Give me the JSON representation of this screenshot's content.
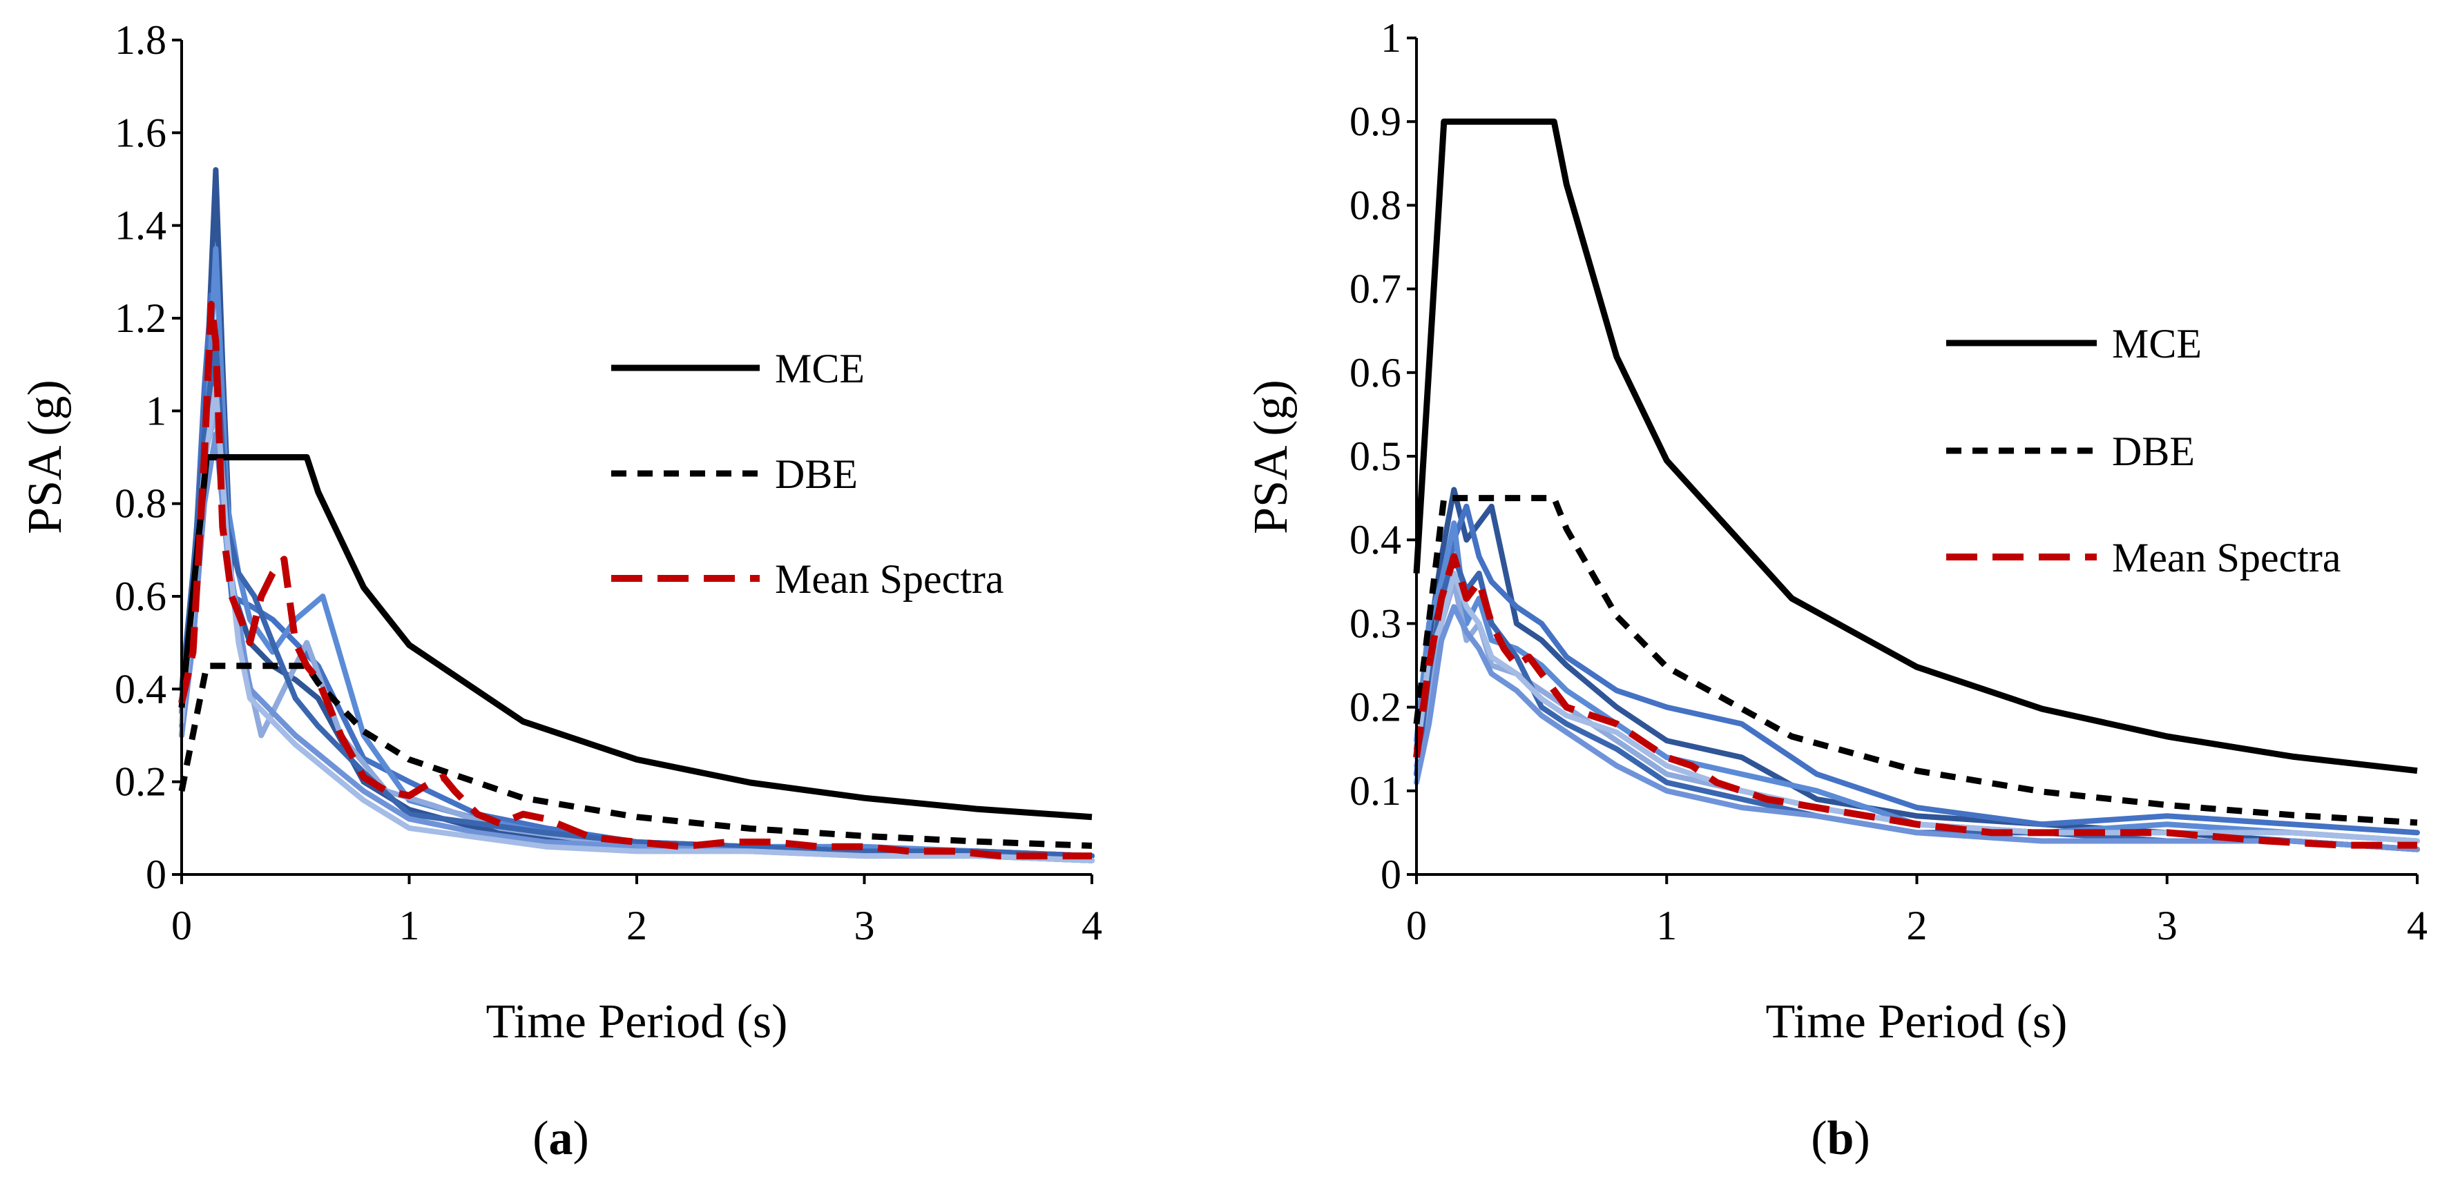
{
  "colors": {
    "mce": "#000000",
    "dbe": "#000000",
    "mean": "#C00000",
    "records": [
      "#2F5597",
      "#4472C4",
      "#5B8BD6",
      "#8FAADC",
      "#3A66B0",
      "#6F93D8",
      "#A4BCE6"
    ]
  },
  "chart_data": [
    {
      "type": "line",
      "panel_label": "(a)",
      "panel_letter": "a",
      "xlabel": "Time Period (s)",
      "ylabel": "PSA (g)",
      "xlim": [
        0,
        4
      ],
      "ylim": [
        0,
        1.8
      ],
      "xticks": [
        0,
        1,
        2,
        3,
        4
      ],
      "yticks": [
        0,
        0.2,
        0.4,
        0.6,
        0.8,
        1,
        1.2,
        1.4,
        1.6,
        1.8
      ],
      "ytick_labels": [
        "0",
        "0.2",
        "0.4",
        "0.6",
        "0.8",
        "1",
        "1.2",
        "1.4",
        "1.6",
        "1.8"
      ],
      "legend_position": "center-right",
      "design_spectra": {
        "mce_plateau": 0.9,
        "dbe_plateau": 0.45,
        "T0": 0.11,
        "Ts": 0.55,
        "PGA_mce": 0.36,
        "PGA_dbe": 0.18
      },
      "series": [
        {
          "name": "MCE",
          "style": "solid",
          "x": [
            0,
            0.11,
            0.55,
            0.6,
            0.8,
            1.0,
            1.5,
            2.0,
            2.5,
            3.0,
            3.5,
            4.0
          ],
          "y": [
            0.36,
            0.9,
            0.9,
            0.825,
            0.619,
            0.495,
            0.33,
            0.248,
            0.198,
            0.165,
            0.141,
            0.124
          ]
        },
        {
          "name": "DBE",
          "style": "dashed",
          "x": [
            0,
            0.11,
            0.55,
            0.6,
            0.8,
            1.0,
            1.5,
            2.0,
            2.5,
            3.0,
            3.5,
            4.0
          ],
          "y": [
            0.18,
            0.45,
            0.45,
            0.413,
            0.309,
            0.248,
            0.165,
            0.124,
            0.099,
            0.083,
            0.071,
            0.062
          ]
        },
        {
          "name": "Mean Spectra",
          "style": "longdash",
          "x": [
            0,
            0.05,
            0.1,
            0.13,
            0.15,
            0.18,
            0.22,
            0.26,
            0.3,
            0.35,
            0.4,
            0.45,
            0.5,
            0.55,
            0.6,
            0.7,
            0.8,
            0.9,
            1.0,
            1.1,
            1.15,
            1.2,
            1.3,
            1.4,
            1.5,
            1.6,
            1.8,
            2.0,
            2.2,
            2.4,
            2.6,
            2.8,
            3.0,
            3.2,
            3.4,
            3.6,
            3.8,
            4.0
          ],
          "y": [
            0.37,
            0.48,
            0.9,
            1.23,
            1.15,
            0.75,
            0.6,
            0.55,
            0.5,
            0.6,
            0.65,
            0.68,
            0.5,
            0.45,
            0.42,
            0.3,
            0.21,
            0.18,
            0.17,
            0.2,
            0.21,
            0.18,
            0.13,
            0.11,
            0.13,
            0.12,
            0.08,
            0.07,
            0.06,
            0.07,
            0.07,
            0.06,
            0.06,
            0.05,
            0.05,
            0.04,
            0.04,
            0.04
          ]
        }
      ],
      "records": [
        {
          "x": [
            0,
            0.05,
            0.1,
            0.15,
            0.18,
            0.22,
            0.3,
            0.4,
            0.5,
            0.6,
            0.8,
            1.0,
            1.3,
            1.6,
            2.0,
            2.5,
            3.0,
            3.5,
            4.0
          ],
          "y": [
            0.3,
            0.55,
            0.95,
            1.52,
            1.1,
            0.62,
            0.5,
            0.45,
            0.42,
            0.38,
            0.2,
            0.14,
            0.1,
            0.08,
            0.06,
            0.05,
            0.05,
            0.04,
            0.03
          ]
        },
        {
          "x": [
            0,
            0.05,
            0.1,
            0.13,
            0.17,
            0.22,
            0.3,
            0.4,
            0.5,
            0.6,
            0.8,
            1.0,
            1.3,
            1.6,
            2.0,
            2.5,
            3.0,
            3.5,
            4.0
          ],
          "y": [
            0.35,
            0.6,
            1.05,
            1.25,
            0.85,
            0.6,
            0.58,
            0.55,
            0.5,
            0.45,
            0.25,
            0.2,
            0.13,
            0.1,
            0.07,
            0.06,
            0.05,
            0.05,
            0.04
          ]
        },
        {
          "x": [
            0,
            0.05,
            0.1,
            0.15,
            0.2,
            0.25,
            0.3,
            0.4,
            0.5,
            0.62,
            0.8,
            1.0,
            1.3,
            1.6,
            2.0,
            2.5,
            3.0,
            3.5,
            4.0
          ],
          "y": [
            0.32,
            0.5,
            0.85,
            1.35,
            0.8,
            0.65,
            0.55,
            0.48,
            0.55,
            0.6,
            0.3,
            0.16,
            0.12,
            0.09,
            0.07,
            0.06,
            0.06,
            0.05,
            0.04
          ]
        },
        {
          "x": [
            0,
            0.05,
            0.1,
            0.15,
            0.2,
            0.28,
            0.35,
            0.45,
            0.55,
            0.7,
            0.9,
            1.1,
            1.4,
            1.7,
            2.0,
            2.5,
            3.0,
            3.5,
            4.0
          ],
          "y": [
            0.38,
            0.55,
            0.9,
            1.0,
            0.7,
            0.45,
            0.3,
            0.4,
            0.5,
            0.3,
            0.18,
            0.15,
            0.1,
            0.08,
            0.06,
            0.05,
            0.05,
            0.04,
            0.04
          ]
        },
        {
          "x": [
            0,
            0.05,
            0.1,
            0.15,
            0.2,
            0.25,
            0.32,
            0.4,
            0.5,
            0.6,
            0.8,
            1.0,
            1.3,
            1.6,
            2.0,
            2.5,
            3.0,
            3.5,
            4.0
          ],
          "y": [
            0.4,
            0.65,
            0.95,
            1.15,
            0.75,
            0.65,
            0.6,
            0.5,
            0.38,
            0.32,
            0.22,
            0.13,
            0.11,
            0.09,
            0.07,
            0.06,
            0.05,
            0.05,
            0.04
          ]
        },
        {
          "x": [
            0,
            0.05,
            0.1,
            0.15,
            0.2,
            0.25,
            0.3,
            0.4,
            0.5,
            0.6,
            0.8,
            1.0,
            1.3,
            1.6,
            2.0,
            2.5,
            3.0,
            3.5,
            4.0
          ],
          "y": [
            0.3,
            0.5,
            0.8,
            0.95,
            0.7,
            0.55,
            0.4,
            0.35,
            0.3,
            0.26,
            0.18,
            0.12,
            0.09,
            0.07,
            0.06,
            0.05,
            0.04,
            0.04,
            0.03
          ]
        },
        {
          "x": [
            0,
            0.05,
            0.1,
            0.15,
            0.2,
            0.25,
            0.3,
            0.4,
            0.5,
            0.6,
            0.8,
            1.0,
            1.3,
            1.6,
            2.0,
            2.5,
            3.0,
            3.5,
            4.0
          ],
          "y": [
            0.33,
            0.58,
            0.88,
            1.05,
            0.72,
            0.5,
            0.38,
            0.33,
            0.28,
            0.24,
            0.16,
            0.1,
            0.08,
            0.06,
            0.05,
            0.05,
            0.04,
            0.04,
            0.03
          ]
        }
      ]
    },
    {
      "type": "line",
      "panel_label": "(b)",
      "panel_letter": "b",
      "xlabel": "Time Period (s)",
      "ylabel": "PSA (g)",
      "xlim": [
        0,
        4
      ],
      "ylim": [
        0,
        1
      ],
      "xticks": [
        0,
        1,
        2,
        3,
        4
      ],
      "yticks": [
        0,
        0.1,
        0.2,
        0.3,
        0.4,
        0.5,
        0.6,
        0.7,
        0.8,
        0.9,
        1
      ],
      "ytick_labels": [
        "0",
        "0.1",
        "0.2",
        "0.3",
        "0.4",
        "0.5",
        "0.6",
        "0.7",
        "0.8",
        "0.9",
        "1"
      ],
      "legend_position": "center-right",
      "design_spectra": {
        "mce_plateau": 0.9,
        "dbe_plateau": 0.45,
        "T0": 0.11,
        "Ts": 0.55,
        "PGA_mce": 0.36,
        "PGA_dbe": 0.18
      },
      "series": [
        {
          "name": "MCE",
          "style": "solid",
          "x": [
            0,
            0.11,
            0.55,
            0.6,
            0.8,
            1.0,
            1.5,
            2.0,
            2.5,
            3.0,
            3.5,
            4.0
          ],
          "y": [
            0.36,
            0.9,
            0.9,
            0.825,
            0.619,
            0.495,
            0.33,
            0.248,
            0.198,
            0.165,
            0.141,
            0.124
          ]
        },
        {
          "name": "DBE",
          "style": "dashed",
          "x": [
            0,
            0.11,
            0.55,
            0.6,
            0.8,
            1.0,
            1.5,
            2.0,
            2.5,
            3.0,
            3.5,
            4.0
          ],
          "y": [
            0.18,
            0.45,
            0.45,
            0.413,
            0.309,
            0.248,
            0.165,
            0.124,
            0.099,
            0.083,
            0.071,
            0.062
          ]
        },
        {
          "name": "Mean Spectra",
          "style": "longdash",
          "x": [
            0,
            0.05,
            0.1,
            0.15,
            0.2,
            0.25,
            0.3,
            0.35,
            0.4,
            0.45,
            0.5,
            0.55,
            0.6,
            0.7,
            0.8,
            0.9,
            1.0,
            1.1,
            1.2,
            1.4,
            1.6,
            1.8,
            2.0,
            2.3,
            2.6,
            3.0,
            3.4,
            3.7,
            4.0
          ],
          "y": [
            0.14,
            0.25,
            0.33,
            0.38,
            0.33,
            0.35,
            0.3,
            0.27,
            0.25,
            0.26,
            0.24,
            0.22,
            0.2,
            0.19,
            0.18,
            0.16,
            0.14,
            0.13,
            0.11,
            0.09,
            0.08,
            0.07,
            0.06,
            0.05,
            0.05,
            0.05,
            0.04,
            0.035,
            0.035
          ]
        }
      ],
      "records": [
        {
          "x": [
            0,
            0.05,
            0.1,
            0.15,
            0.2,
            0.25,
            0.3,
            0.4,
            0.5,
            0.6,
            0.8,
            1.0,
            1.3,
            1.6,
            2.0,
            2.5,
            3.0,
            3.5,
            4.0
          ],
          "y": [
            0.15,
            0.28,
            0.38,
            0.46,
            0.4,
            0.42,
            0.44,
            0.3,
            0.28,
            0.25,
            0.2,
            0.16,
            0.14,
            0.09,
            0.07,
            0.06,
            0.05,
            0.04,
            0.03
          ]
        },
        {
          "x": [
            0,
            0.05,
            0.1,
            0.15,
            0.2,
            0.25,
            0.3,
            0.4,
            0.5,
            0.6,
            0.8,
            1.0,
            1.3,
            1.6,
            2.0,
            2.5,
            3.0,
            3.5,
            4.0
          ],
          "y": [
            0.12,
            0.22,
            0.32,
            0.4,
            0.44,
            0.38,
            0.35,
            0.32,
            0.3,
            0.26,
            0.22,
            0.2,
            0.18,
            0.12,
            0.08,
            0.06,
            0.07,
            0.06,
            0.05
          ]
        },
        {
          "x": [
            0,
            0.05,
            0.1,
            0.15,
            0.2,
            0.25,
            0.3,
            0.4,
            0.5,
            0.6,
            0.8,
            1.0,
            1.3,
            1.6,
            2.0,
            2.5,
            3.0,
            3.5,
            4.0
          ],
          "y": [
            0.16,
            0.3,
            0.35,
            0.42,
            0.3,
            0.33,
            0.28,
            0.27,
            0.25,
            0.22,
            0.18,
            0.14,
            0.12,
            0.1,
            0.06,
            0.05,
            0.06,
            0.05,
            0.04
          ]
        },
        {
          "x": [
            0,
            0.05,
            0.1,
            0.15,
            0.2,
            0.25,
            0.3,
            0.4,
            0.5,
            0.6,
            0.8,
            1.0,
            1.3,
            1.6,
            2.0,
            2.5,
            3.0,
            3.5,
            4.0
          ],
          "y": [
            0.13,
            0.2,
            0.3,
            0.35,
            0.28,
            0.3,
            0.25,
            0.24,
            0.22,
            0.2,
            0.16,
            0.12,
            0.1,
            0.08,
            0.06,
            0.05,
            0.04,
            0.04,
            0.03
          ]
        },
        {
          "x": [
            0,
            0.05,
            0.1,
            0.15,
            0.2,
            0.25,
            0.3,
            0.4,
            0.5,
            0.6,
            0.8,
            1.0,
            1.3,
            1.6,
            2.0,
            2.5,
            3.0,
            3.5,
            4.0
          ],
          "y": [
            0.12,
            0.24,
            0.33,
            0.38,
            0.34,
            0.36,
            0.3,
            0.26,
            0.2,
            0.18,
            0.15,
            0.11,
            0.09,
            0.07,
            0.05,
            0.05,
            0.04,
            0.04,
            0.03
          ]
        },
        {
          "x": [
            0,
            0.05,
            0.1,
            0.15,
            0.2,
            0.25,
            0.3,
            0.4,
            0.5,
            0.6,
            0.8,
            1.0,
            1.3,
            1.6,
            2.0,
            2.5,
            3.0,
            3.5,
            4.0
          ],
          "y": [
            0.11,
            0.18,
            0.28,
            0.32,
            0.29,
            0.27,
            0.24,
            0.22,
            0.19,
            0.17,
            0.13,
            0.1,
            0.08,
            0.07,
            0.05,
            0.04,
            0.04,
            0.04,
            0.03
          ]
        },
        {
          "x": [
            0,
            0.05,
            0.1,
            0.15,
            0.2,
            0.25,
            0.3,
            0.4,
            0.5,
            0.6,
            0.8,
            1.0,
            1.3,
            1.6,
            2.0,
            2.5,
            3.0,
            3.5,
            4.0
          ],
          "y": [
            0.14,
            0.26,
            0.3,
            0.36,
            0.32,
            0.3,
            0.26,
            0.24,
            0.21,
            0.19,
            0.17,
            0.13,
            0.1,
            0.08,
            0.06,
            0.05,
            0.05,
            0.05,
            0.04
          ]
        }
      ]
    }
  ]
}
